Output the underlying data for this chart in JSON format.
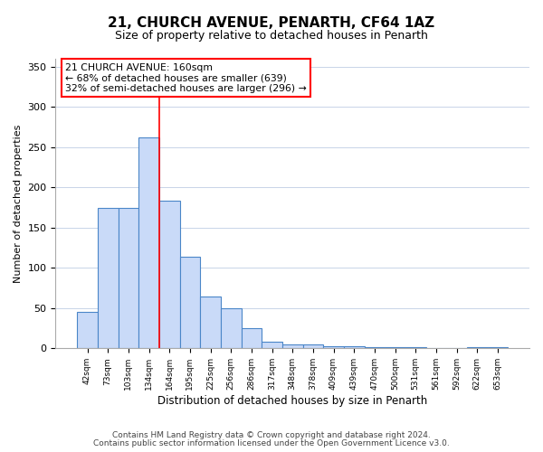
{
  "title": "21, CHURCH AVENUE, PENARTH, CF64 1AZ",
  "subtitle": "Size of property relative to detached houses in Penarth",
  "xlabel": "Distribution of detached houses by size in Penarth",
  "ylabel": "Number of detached properties",
  "bin_labels": [
    "42sqm",
    "73sqm",
    "103sqm",
    "134sqm",
    "164sqm",
    "195sqm",
    "225sqm",
    "256sqm",
    "286sqm",
    "317sqm",
    "348sqm",
    "378sqm",
    "409sqm",
    "439sqm",
    "470sqm",
    "500sqm",
    "531sqm",
    "561sqm",
    "592sqm",
    "622sqm",
    "653sqm"
  ],
  "bin_values": [
    45,
    175,
    175,
    262,
    184,
    114,
    65,
    50,
    25,
    8,
    5,
    5,
    3,
    3,
    2,
    2,
    2,
    0,
    0,
    2,
    2
  ],
  "bar_color": "#c9daf8",
  "bar_edge_color": "#4a86c8",
  "red_line_x": 3.5,
  "annotation_text_lines": [
    "21 CHURCH AVENUE: 160sqm",
    "← 68% of detached houses are smaller (639)",
    "32% of semi-detached houses are larger (296) →"
  ],
  "ylim": [
    0,
    360
  ],
  "yticks": [
    0,
    50,
    100,
    150,
    200,
    250,
    300,
    350
  ],
  "footer_line1": "Contains HM Land Registry data © Crown copyright and database right 2024.",
  "footer_line2": "Contains public sector information licensed under the Open Government Licence v3.0.",
  "background_color": "#ffffff",
  "grid_color": "#c8d4e8"
}
